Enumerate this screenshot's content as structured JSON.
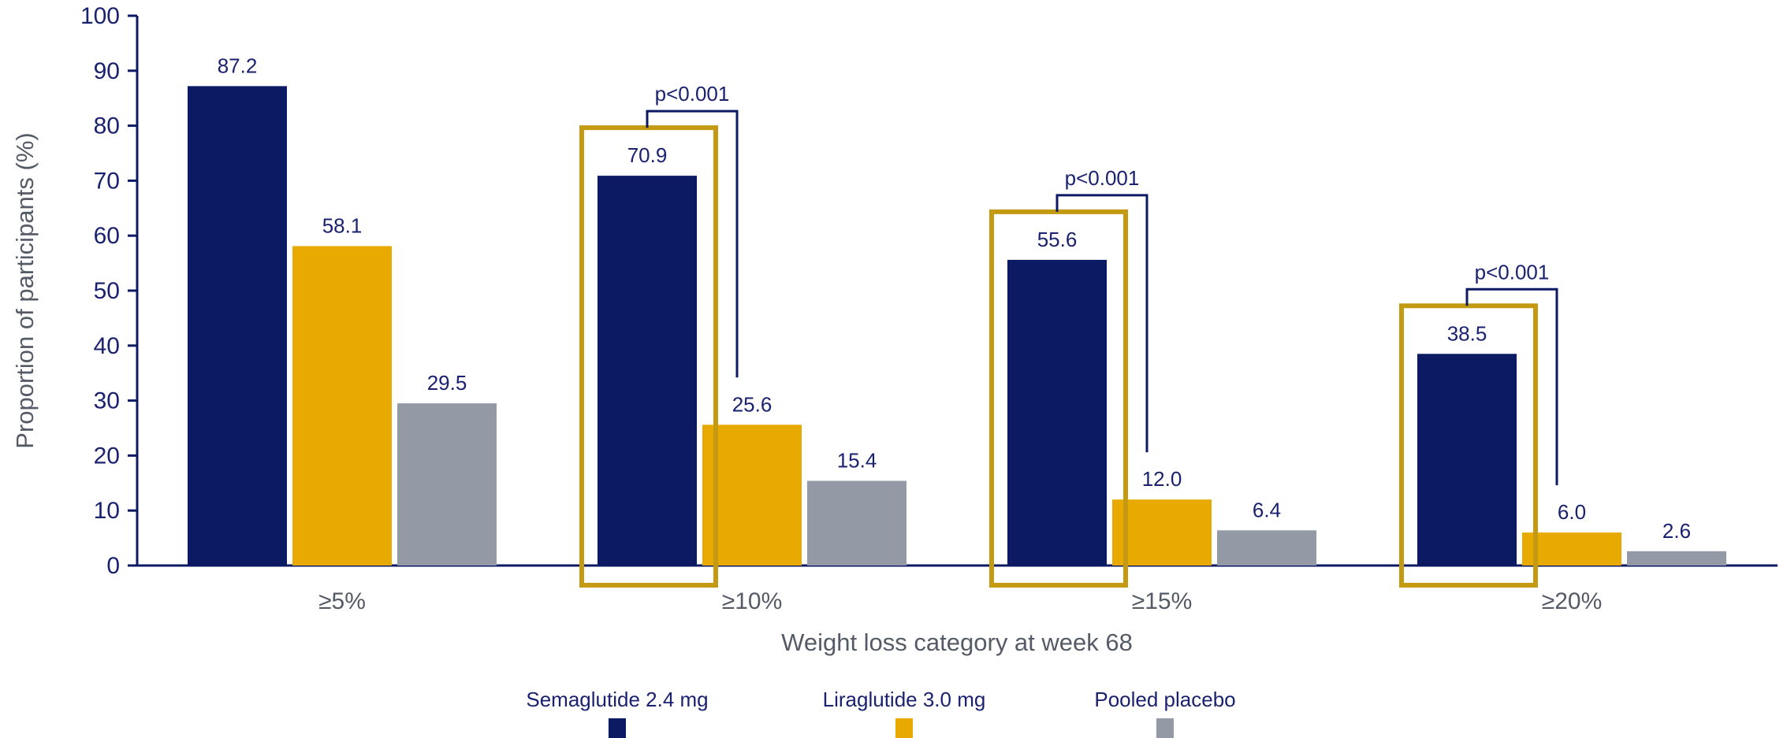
{
  "chart_data": {
    "type": "bar",
    "ylabel": "Proportion of participants (%)",
    "xlabel": "Weight loss category at week 68",
    "ylim": [
      0,
      100
    ],
    "yticks": [
      0,
      10,
      20,
      30,
      40,
      50,
      60,
      70,
      80,
      90,
      100
    ],
    "categories": [
      "≥5%",
      "≥10%",
      "≥15%",
      "≥20%"
    ],
    "series": [
      {
        "name": "Semaglutide 2.4 mg",
        "color": "#0c1a64",
        "values": [
          87.2,
          70.9,
          55.6,
          38.5
        ],
        "labels": [
          "87.2",
          "70.9",
          "55.6",
          "38.5"
        ]
      },
      {
        "name": "Liraglutide 3.0 mg",
        "color": "#e8aa00",
        "values": [
          58.1,
          25.6,
          12.0,
          6.0
        ],
        "labels": [
          "58.1",
          "25.6",
          "12.0",
          "6.0"
        ]
      },
      {
        "name": "Pooled placebo",
        "color": "#939aa6",
        "values": [
          29.5,
          15.4,
          6.4,
          2.6
        ],
        "labels": [
          "29.5",
          "15.4",
          "6.4",
          "2.6"
        ]
      }
    ],
    "comparisons": [
      {
        "category": "≥10%",
        "label": "p<0.001"
      },
      {
        "category": "≥15%",
        "label": "p<0.001"
      },
      {
        "category": "≥20%",
        "label": "p<0.001"
      }
    ],
    "highlight_color": "#c49a12",
    "highlighted_categories": [
      "≥10%",
      "≥15%",
      "≥20%"
    ],
    "axis_color": "#0c1a64",
    "grid": false,
    "legend_position": "bottom"
  }
}
